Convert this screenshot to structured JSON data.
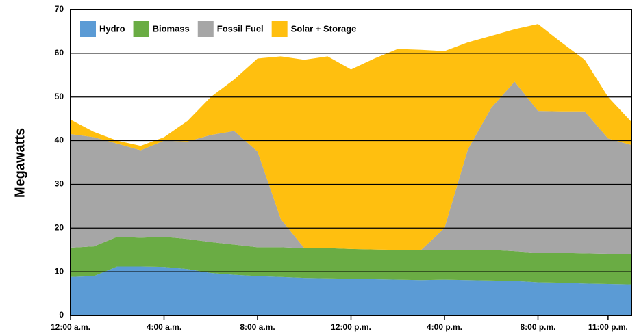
{
  "chart_data": {
    "type": "stacked_area",
    "y_label": "Megawatts",
    "x": [
      0,
      1,
      2,
      3,
      4,
      5,
      6,
      7,
      8,
      9,
      10,
      11,
      12,
      13,
      14,
      15,
      16,
      17,
      18,
      19,
      20,
      21,
      22,
      23,
      24
    ],
    "series": [
      {
        "name": "Hydro",
        "color": "#5b9bd5",
        "values": [
          8.8,
          9,
          11.2,
          11.2,
          11.1,
          10.6,
          9.7,
          9.3,
          9,
          8.8,
          8.6,
          8.5,
          8.4,
          8.3,
          8.2,
          8.1,
          8.2,
          8.1,
          8,
          7.9,
          7.6,
          7.5,
          7.3,
          7.2,
          7.1
        ]
      },
      {
        "name": "Biomass",
        "color": "#6aac44",
        "values": [
          6.7,
          6.8,
          6.8,
          6.6,
          6.9,
          6.9,
          7.1,
          6.9,
          6.6,
          6.8,
          6.8,
          6.9,
          6.8,
          6.8,
          6.8,
          6.9,
          6.8,
          6.9,
          7,
          6.8,
          6.7,
          6.8,
          6.9,
          6.9,
          7
        ]
      },
      {
        "name": "Fossil Fuel",
        "color": "#a6a6a6",
        "values": [
          26,
          25,
          21.3,
          20,
          22,
          22.3,
          24.5,
          26,
          21.9,
          6.4,
          0,
          0,
          0,
          0,
          0,
          0,
          5,
          23,
          32.5,
          38.8,
          32.5,
          32.4,
          32.5,
          26.4,
          24.9
        ]
      },
      {
        "name": "Solar + Storage",
        "color": "#ffbf0f",
        "values": [
          3.3,
          1.2,
          0.7,
          1,
          0.8,
          4.7,
          8.7,
          11.8,
          21.3,
          37.3,
          43.1,
          43.9,
          41.1,
          43.7,
          46,
          45.8,
          40.5,
          24.5,
          16.5,
          12,
          19.9,
          15.8,
          11.8,
          9.5,
          5.3
        ]
      }
    ],
    "xlim": [
      0,
      24
    ],
    "xticks": [
      {
        "value": 0,
        "label": "12:00 a.m."
      },
      {
        "value": 4,
        "label": "4:00 a.m."
      },
      {
        "value": 8,
        "label": "8:00 a.m."
      },
      {
        "value": 12,
        "label": "12:00 p.m."
      },
      {
        "value": 16,
        "label": "4:00 p.m."
      },
      {
        "value": 20,
        "label": "8:00 p.m."
      },
      {
        "value": 23,
        "label": "11:00 p.m."
      }
    ],
    "ylim": [
      0,
      70
    ],
    "yticks": [
      0,
      10,
      20,
      30,
      40,
      50,
      60,
      70
    ],
    "grid": true,
    "legend": "top-left"
  }
}
